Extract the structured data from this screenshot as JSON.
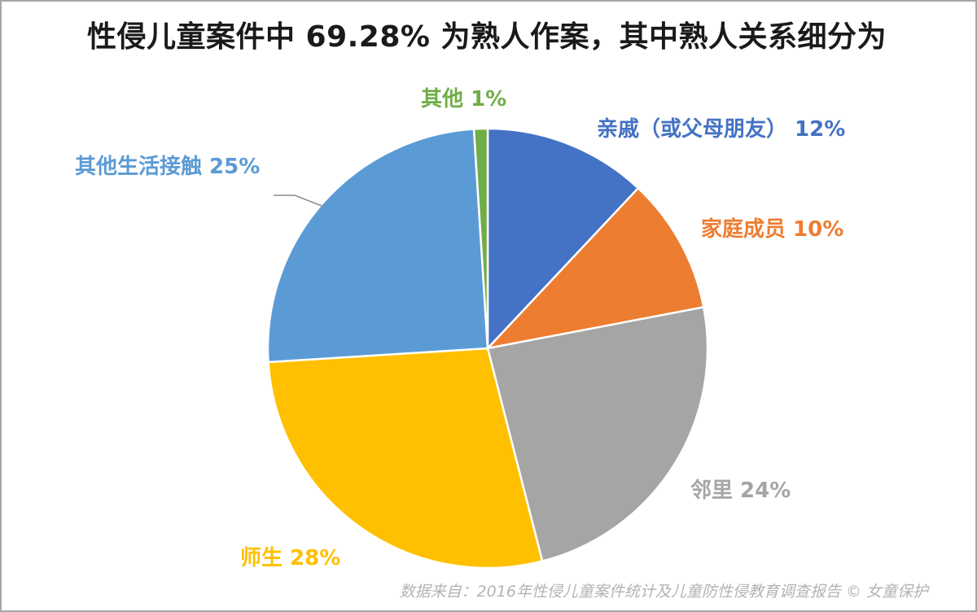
{
  "title": "性侵儿童案件中 69.28% 为熟人作案，其中熟人关系细分为",
  "source": "数据来自：2016年性侵儿童案件统计及儿童防性侵教育调查报告 © 女童保护",
  "chart_data": {
    "type": "pie",
    "start": "12 o'clock",
    "direction": "clockwise",
    "slices": [
      {
        "name": "亲戚（或父母朋友）",
        "pct_label": "12%",
        "value": 12,
        "color": "#4472C4"
      },
      {
        "name": "家庭成员",
        "pct_label": "10%",
        "value": 10,
        "color": "#ED7D31"
      },
      {
        "name": "邻里",
        "pct_label": "24%",
        "value": 24,
        "color": "#A5A5A5"
      },
      {
        "name": "师生",
        "pct_label": "28%",
        "value": 28,
        "color": "#FFC000"
      },
      {
        "name": "其他生活接触",
        "pct_label": "25%",
        "value": 25,
        "color": "#5B9BD5"
      },
      {
        "name": "其他",
        "pct_label": "1%",
        "value": 1,
        "color": "#70AD47"
      }
    ]
  }
}
